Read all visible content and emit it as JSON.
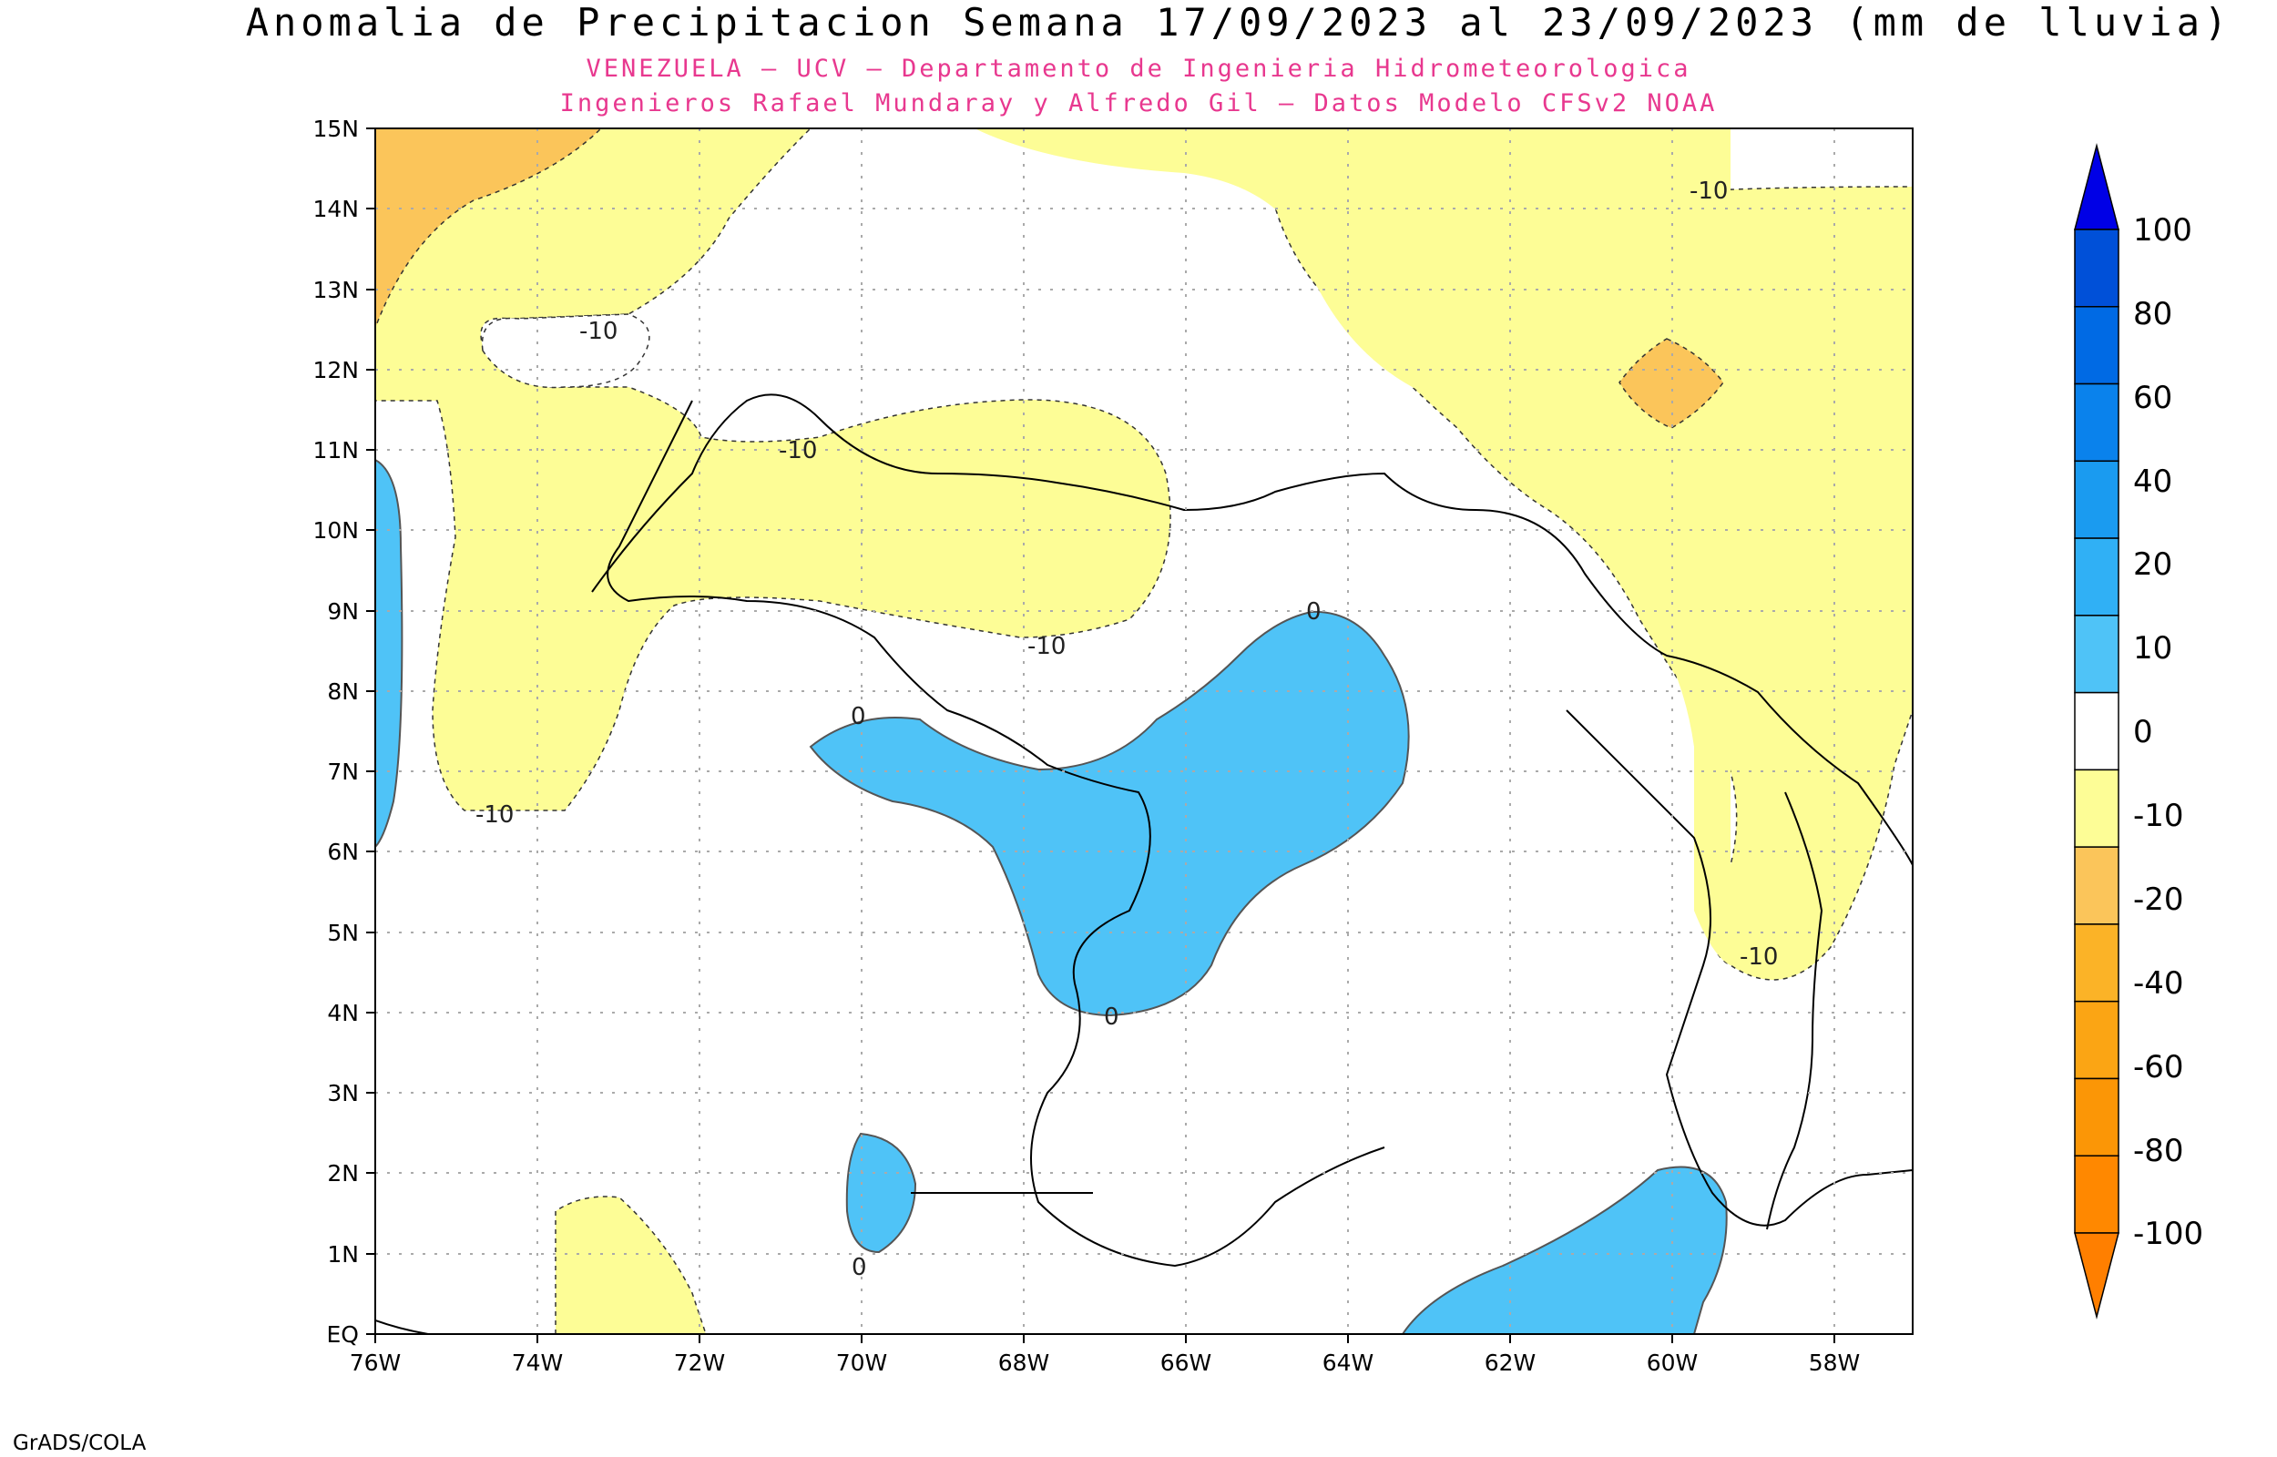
{
  "title": "Anomalia de Precipitacion Semana 17/09/2023 al 23/09/2023 (mm de lluvia)",
  "subtitle_1": "VENEZUELA — UCV — Departamento de Ingenieria Hidrometeorologica",
  "subtitle_2": "Ingenieros Rafael Mundaray y Alfredo Gil — Datos Modelo CFSv2 NOAA",
  "credit": "GrADS/COLA",
  "map": {
    "lat_labels": [
      "EQ",
      "1N",
      "2N",
      "3N",
      "4N",
      "5N",
      "6N",
      "7N",
      "8N",
      "9N",
      "10N",
      "11N",
      "12N",
      "13N",
      "14N",
      "15N"
    ],
    "lon_labels": [
      "76W",
      "74W",
      "72W",
      "70W",
      "68W",
      "66W",
      "64W",
      "62W",
      "60W",
      "58W"
    ],
    "contour_labels": [
      "-10",
      "-10",
      "-10",
      "-10",
      "-10",
      "-10",
      "0",
      "0",
      "0",
      "0"
    ],
    "colors": {
      "positive_0_10": "#4fc3f7",
      "negative_10_20": "#fdfd96",
      "negative_20_40": "#fbc55a"
    }
  },
  "colorbar": {
    "labels": [
      "100",
      "80",
      "60",
      "40",
      "20",
      "10",
      "0",
      "-10",
      "-20",
      "-40",
      "-60",
      "-80",
      "-100"
    ],
    "top_color": "#0000e6",
    "bottom_color": "#ff7f00",
    "segments": [
      "#0050d8",
      "#006ae4",
      "#0a82ec",
      "#1a9bf0",
      "#30b0f5",
      "#4fc3f7",
      "#ffffff",
      "#fdfd96",
      "#fbc55a",
      "#fbb327",
      "#fba514",
      "#fb9606",
      "#ff8800"
    ]
  }
}
